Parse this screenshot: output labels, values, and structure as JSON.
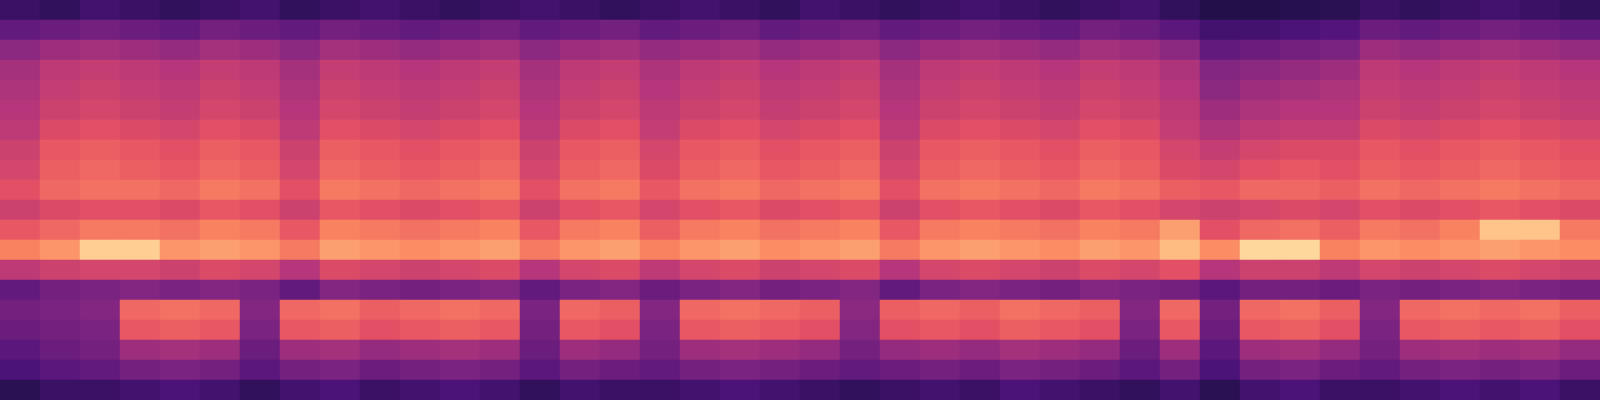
{
  "chart_data": {
    "type": "heatmap",
    "tick_labels": false,
    "grid": false,
    "color_range": [
      0,
      100
    ],
    "cells": [
      [
        20,
        18,
        22,
        20,
        18,
        20,
        22,
        18,
        20,
        22,
        20,
        18,
        20,
        22,
        20,
        18,
        20,
        22,
        20,
        18,
        22,
        20,
        18,
        20,
        22,
        20,
        18,
        20,
        22,
        18,
        14,
        14,
        15,
        16,
        20,
        18,
        20,
        22,
        20,
        18
      ],
      [
        30,
        32,
        34,
        32,
        30,
        34,
        32,
        30,
        34,
        32,
        30,
        32,
        34,
        30,
        32,
        34,
        30,
        32,
        34,
        30,
        32,
        34,
        30,
        32,
        34,
        32,
        30,
        34,
        32,
        28,
        22,
        22,
        24,
        26,
        32,
        30,
        32,
        34,
        32,
        30
      ],
      [
        40,
        44,
        46,
        44,
        42,
        46,
        44,
        40,
        46,
        44,
        42,
        44,
        46,
        40,
        44,
        46,
        42,
        44,
        46,
        42,
        44,
        46,
        40,
        44,
        46,
        44,
        42,
        46,
        44,
        40,
        30,
        32,
        34,
        36,
        44,
        42,
        44,
        46,
        44,
        42
      ],
      [
        46,
        52,
        54,
        52,
        50,
        54,
        52,
        46,
        54,
        52,
        50,
        52,
        54,
        46,
        52,
        54,
        48,
        52,
        54,
        50,
        52,
        54,
        46,
        52,
        54,
        52,
        50,
        54,
        52,
        48,
        38,
        40,
        42,
        44,
        52,
        50,
        52,
        54,
        52,
        50
      ],
      [
        48,
        54,
        56,
        54,
        52,
        56,
        54,
        48,
        56,
        54,
        52,
        54,
        56,
        48,
        54,
        56,
        50,
        54,
        56,
        52,
        54,
        56,
        48,
        54,
        56,
        54,
        52,
        56,
        54,
        50,
        40,
        44,
        46,
        48,
        54,
        52,
        54,
        56,
        54,
        52
      ],
      [
        50,
        56,
        58,
        56,
        54,
        58,
        56,
        50,
        58,
        56,
        54,
        56,
        58,
        50,
        56,
        58,
        52,
        56,
        58,
        54,
        56,
        58,
        50,
        56,
        58,
        56,
        54,
        58,
        56,
        52,
        44,
        48,
        50,
        50,
        56,
        54,
        56,
        58,
        56,
        54
      ],
      [
        52,
        60,
        62,
        60,
        58,
        62,
        60,
        52,
        62,
        60,
        58,
        60,
        62,
        52,
        60,
        62,
        54,
        60,
        62,
        58,
        60,
        62,
        52,
        60,
        62,
        60,
        58,
        62,
        60,
        54,
        48,
        52,
        54,
        54,
        60,
        58,
        60,
        62,
        60,
        58
      ],
      [
        56,
        64,
        66,
        64,
        62,
        66,
        64,
        56,
        66,
        64,
        62,
        64,
        66,
        56,
        64,
        66,
        58,
        64,
        66,
        62,
        64,
        66,
        56,
        64,
        66,
        64,
        62,
        66,
        64,
        58,
        54,
        58,
        60,
        60,
        64,
        62,
        64,
        66,
        64,
        62
      ],
      [
        58,
        66,
        68,
        66,
        64,
        68,
        66,
        58,
        68,
        66,
        64,
        66,
        68,
        58,
        66,
        68,
        60,
        66,
        68,
        64,
        66,
        68,
        58,
        66,
        68,
        66,
        64,
        68,
        66,
        60,
        58,
        62,
        64,
        62,
        66,
        64,
        66,
        68,
        66,
        64
      ],
      [
        62,
        68,
        70,
        70,
        68,
        72,
        70,
        62,
        72,
        70,
        68,
        70,
        72,
        62,
        70,
        72,
        64,
        70,
        72,
        68,
        70,
        72,
        62,
        70,
        72,
        70,
        68,
        72,
        70,
        66,
        64,
        68,
        68,
        66,
        70,
        68,
        70,
        72,
        70,
        68
      ],
      [
        56,
        60,
        62,
        62,
        60,
        64,
        62,
        56,
        64,
        62,
        60,
        62,
        64,
        56,
        62,
        64,
        58,
        62,
        64,
        60,
        62,
        64,
        56,
        62,
        64,
        62,
        60,
        64,
        62,
        58,
        56,
        58,
        60,
        58,
        62,
        60,
        62,
        64,
        62,
        60
      ],
      [
        64,
        68,
        72,
        72,
        70,
        74,
        72,
        64,
        74,
        72,
        70,
        72,
        74,
        64,
        72,
        74,
        66,
        72,
        74,
        70,
        72,
        74,
        64,
        72,
        74,
        72,
        70,
        74,
        72,
        80,
        62,
        68,
        70,
        66,
        72,
        70,
        74,
        88,
        88,
        72
      ],
      [
        74,
        78,
        90,
        90,
        78,
        80,
        78,
        72,
        80,
        78,
        76,
        78,
        80,
        72,
        78,
        80,
        74,
        78,
        80,
        76,
        78,
        80,
        72,
        78,
        80,
        78,
        76,
        80,
        78,
        86,
        76,
        92,
        92,
        74,
        78,
        76,
        78,
        80,
        78,
        76
      ],
      [
        52,
        56,
        58,
        58,
        56,
        60,
        58,
        50,
        60,
        58,
        56,
        58,
        60,
        50,
        58,
        60,
        52,
        58,
        60,
        56,
        58,
        60,
        50,
        58,
        60,
        58,
        56,
        60,
        58,
        62,
        50,
        56,
        56,
        52,
        58,
        56,
        58,
        60,
        58,
        56
      ],
      [
        30,
        34,
        36,
        38,
        36,
        38,
        36,
        30,
        38,
        36,
        34,
        36,
        38,
        30,
        36,
        38,
        32,
        36,
        38,
        34,
        36,
        38,
        30,
        36,
        38,
        36,
        34,
        38,
        36,
        34,
        28,
        34,
        34,
        32,
        36,
        34,
        36,
        38,
        36,
        34
      ],
      [
        34,
        36,
        38,
        68,
        70,
        68,
        38,
        68,
        70,
        66,
        68,
        70,
        68,
        36,
        68,
        66,
        38,
        68,
        70,
        68,
        66,
        40,
        66,
        68,
        66,
        70,
        68,
        66,
        38,
        68,
        34,
        68,
        70,
        66,
        38,
        68,
        70,
        68,
        70,
        66
      ],
      [
        32,
        34,
        36,
        64,
        66,
        64,
        36,
        64,
        66,
        62,
        64,
        66,
        64,
        34,
        64,
        62,
        36,
        64,
        66,
        64,
        62,
        38,
        62,
        64,
        62,
        66,
        64,
        62,
        36,
        64,
        32,
        64,
        66,
        62,
        36,
        64,
        66,
        64,
        66,
        62
      ],
      [
        28,
        32,
        34,
        44,
        46,
        44,
        32,
        44,
        46,
        42,
        44,
        46,
        44,
        32,
        44,
        42,
        34,
        44,
        46,
        44,
        42,
        34,
        42,
        44,
        42,
        46,
        44,
        42,
        32,
        44,
        28,
        44,
        46,
        42,
        34,
        44,
        46,
        44,
        46,
        42
      ],
      [
        24,
        28,
        30,
        34,
        36,
        34,
        28,
        34,
        36,
        32,
        34,
        36,
        34,
        28,
        34,
        32,
        30,
        34,
        36,
        34,
        32,
        30,
        32,
        34,
        32,
        36,
        34,
        32,
        28,
        34,
        24,
        34,
        36,
        32,
        30,
        34,
        36,
        34,
        36,
        32
      ],
      [
        16,
        20,
        20,
        22,
        24,
        22,
        18,
        22,
        24,
        20,
        22,
        24,
        22,
        18,
        22,
        20,
        20,
        22,
        24,
        22,
        20,
        18,
        20,
        22,
        20,
        24,
        22,
        20,
        18,
        22,
        16,
        22,
        24,
        20,
        20,
        22,
        24,
        22,
        24,
        20
      ]
    ]
  }
}
